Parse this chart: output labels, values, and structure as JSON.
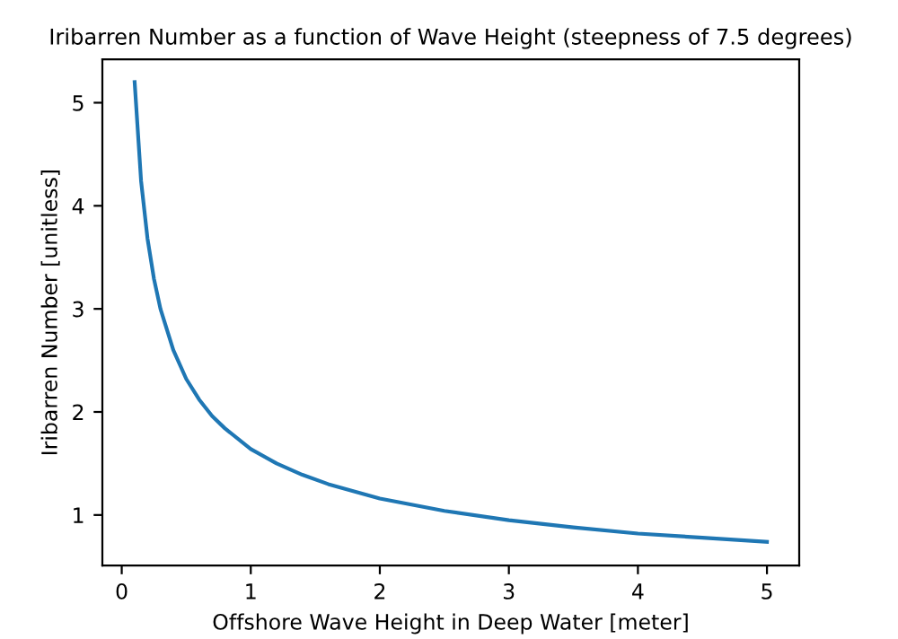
{
  "chart_data": {
    "type": "line",
    "title": "Iribarren Number as a function of Wave Height (steepness of 7.5 degrees)",
    "xlabel": "Offshore Wave Height in Deep Water [meter]",
    "ylabel": "Iribarren Number [unitless]",
    "x": [
      0.1,
      0.15,
      0.2,
      0.25,
      0.3,
      0.4,
      0.5,
      0.6,
      0.7,
      0.8,
      1.0,
      1.2,
      1.4,
      1.6,
      1.8,
      2.0,
      2.5,
      3.0,
      3.5,
      4.0,
      4.5,
      5.0
    ],
    "series": [
      {
        "color": "#1f77b4",
        "values": [
          5.2,
          4.24,
          3.68,
          3.29,
          3.0,
          2.6,
          2.32,
          2.12,
          1.96,
          1.84,
          1.64,
          1.5,
          1.39,
          1.3,
          1.23,
          1.16,
          1.04,
          0.95,
          0.88,
          0.82,
          0.78,
          0.74
        ]
      }
    ],
    "xlim": [
      -0.15,
      5.25
    ],
    "ylim": [
      0.51,
      5.42
    ],
    "xticks": [
      0,
      1,
      2,
      3,
      4,
      5
    ],
    "yticks": [
      1,
      2,
      3,
      4,
      5
    ],
    "grid": false,
    "legend": false,
    "marker": "none",
    "line_style": "solid"
  }
}
